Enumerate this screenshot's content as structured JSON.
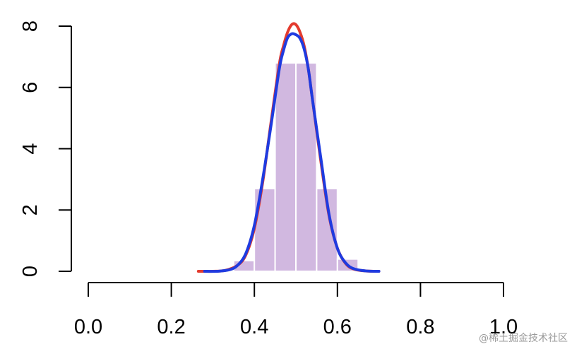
{
  "chart_data": {
    "type": "bar",
    "title": "",
    "xlabel": "",
    "ylabel": "",
    "xlim": [
      0,
      1
    ],
    "ylim": [
      0,
      8
    ],
    "x_ticks": [
      "0.0",
      "0.2",
      "0.4",
      "0.6",
      "0.8",
      "1.0"
    ],
    "y_ticks": [
      "0",
      "2",
      "4",
      "6",
      "8"
    ],
    "grid": false,
    "legend": "none",
    "histogram": {
      "color": "#d1b8e0",
      "edge_color": "#ffffff",
      "bins": [
        {
          "start": 0.35,
          "end": 0.4,
          "density": 0.35
        },
        {
          "start": 0.4,
          "end": 0.45,
          "density": 2.7
        },
        {
          "start": 0.45,
          "end": 0.5,
          "density": 6.8
        },
        {
          "start": 0.5,
          "end": 0.55,
          "density": 6.8
        },
        {
          "start": 0.55,
          "end": 0.6,
          "density": 2.7
        },
        {
          "start": 0.6,
          "end": 0.65,
          "density": 0.4
        }
      ]
    },
    "series": [
      {
        "type": "line",
        "color": "#e33b2e",
        "x": [
          0.265,
          0.3,
          0.33,
          0.36,
          0.38,
          0.4,
          0.42,
          0.44,
          0.46,
          0.47,
          0.48,
          0.49,
          0.5,
          0.51,
          0.52,
          0.53,
          0.54,
          0.56,
          0.58,
          0.6,
          0.62,
          0.64,
          0.67,
          0.7
        ],
        "y": [
          0.0,
          0.0,
          0.03,
          0.2,
          0.55,
          1.4,
          2.9,
          4.85,
          6.75,
          7.35,
          7.8,
          8.05,
          8.05,
          7.8,
          7.35,
          6.6,
          5.6,
          3.6,
          1.8,
          0.75,
          0.25,
          0.07,
          0.01,
          0.0
        ]
      },
      {
        "type": "line",
        "color": "#1f3be0",
        "x": [
          0.28,
          0.31,
          0.34,
          0.36,
          0.38,
          0.4,
          0.42,
          0.44,
          0.46,
          0.47,
          0.48,
          0.49,
          0.5,
          0.51,
          0.52,
          0.53,
          0.54,
          0.56,
          0.58,
          0.6,
          0.62,
          0.64,
          0.67,
          0.7
        ],
        "y": [
          0.0,
          0.0,
          0.05,
          0.2,
          0.6,
          1.5,
          3.0,
          4.75,
          6.6,
          7.2,
          7.62,
          7.75,
          7.72,
          7.6,
          7.25,
          6.6,
          5.6,
          3.7,
          1.85,
          0.75,
          0.27,
          0.08,
          0.01,
          0.0
        ]
      }
    ]
  },
  "watermark": "@稀土掘金技术社区"
}
